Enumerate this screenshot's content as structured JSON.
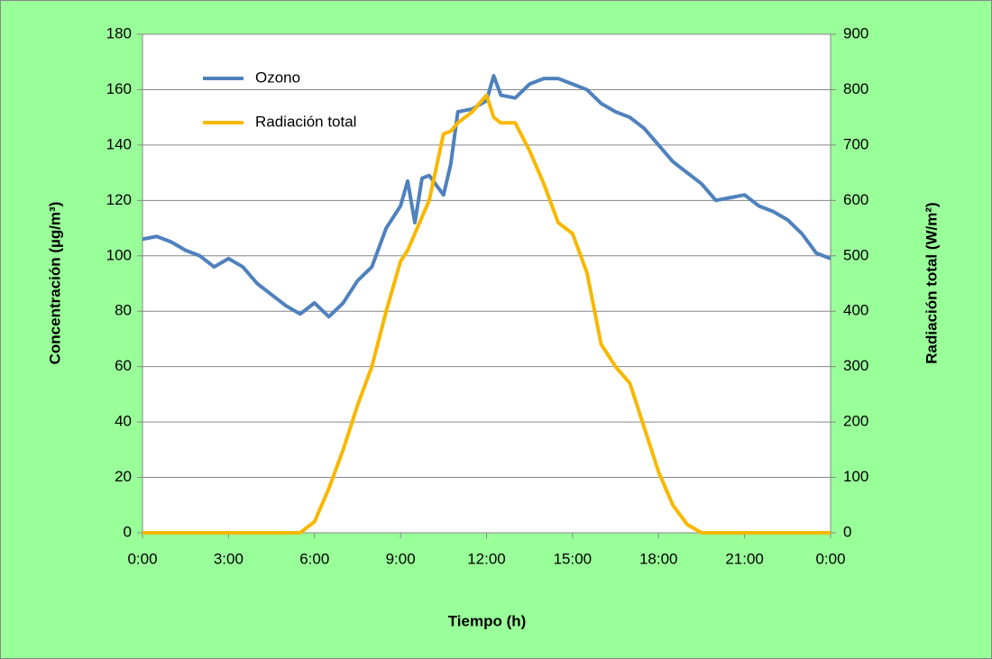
{
  "chart_data": {
    "type": "line",
    "xlabel": "Tiempo (h)",
    "ylabel": "Concentración (µg/m³)",
    "y2label": "Radiación total (W/m²)",
    "x": [
      0,
      0.5,
      1,
      1.5,
      2,
      2.5,
      3,
      3.5,
      4,
      4.5,
      5,
      5.5,
      6,
      6.5,
      7,
      7.5,
      8,
      8.5,
      9,
      9.25,
      9.5,
      9.75,
      10,
      10.5,
      10.75,
      11,
      11.5,
      12,
      12.25,
      12.5,
      13,
      13.5,
      14,
      14.5,
      15,
      15.5,
      16,
      16.5,
      17,
      17.5,
      18,
      18.5,
      19,
      19.5,
      20,
      20.5,
      21,
      21.5,
      22,
      22.5,
      23,
      23.5,
      24
    ],
    "series": [
      {
        "name": "Ozono",
        "color": "#4f81bd",
        "values": [
          106,
          107,
          105,
          102,
          100,
          96,
          99,
          96,
          90,
          86,
          82,
          79,
          83,
          78,
          83,
          91,
          96,
          110,
          118,
          127,
          112,
          128,
          129,
          122,
          133,
          152,
          153,
          156,
          165,
          158,
          157,
          162,
          164,
          164,
          162,
          160,
          155,
          152,
          150,
          146,
          140,
          134,
          130,
          126,
          120,
          121,
          122,
          118,
          116,
          113,
          108,
          101,
          99
        ]
      },
      {
        "name": "Radiación total",
        "color": "#f8b800",
        "axis": "y2",
        "values": [
          0,
          0,
          0,
          0,
          0,
          0,
          0,
          0,
          0,
          0,
          0,
          0,
          20,
          80,
          150,
          230,
          300,
          400,
          490,
          510,
          540,
          570,
          600,
          720,
          725,
          740,
          760,
          790,
          750,
          740,
          740,
          690,
          630,
          560,
          540,
          470,
          340,
          300,
          270,
          190,
          110,
          50,
          15,
          0,
          0,
          0,
          0,
          0,
          0,
          0,
          0,
          0,
          0
        ]
      }
    ],
    "xlim": [
      0,
      24
    ],
    "xticks": [
      {
        "value": 0,
        "label": "0:00"
      },
      {
        "value": 3,
        "label": "3:00"
      },
      {
        "value": 6,
        "label": "6:00"
      },
      {
        "value": 9,
        "label": "9:00"
      },
      {
        "value": 12,
        "label": "12:00"
      },
      {
        "value": 15,
        "label": "15:00"
      },
      {
        "value": 18,
        "label": "18:00"
      },
      {
        "value": 21,
        "label": "21:00"
      },
      {
        "value": 24,
        "label": "0:00"
      }
    ],
    "ylim": [
      0,
      180
    ],
    "yticks": [
      0,
      20,
      40,
      60,
      80,
      100,
      120,
      140,
      160,
      180
    ],
    "y2lim": [
      0,
      900
    ],
    "y2ticks": [
      0,
      100,
      200,
      300,
      400,
      500,
      600,
      700,
      800,
      900
    ],
    "grid": true,
    "legend": "upper left"
  }
}
